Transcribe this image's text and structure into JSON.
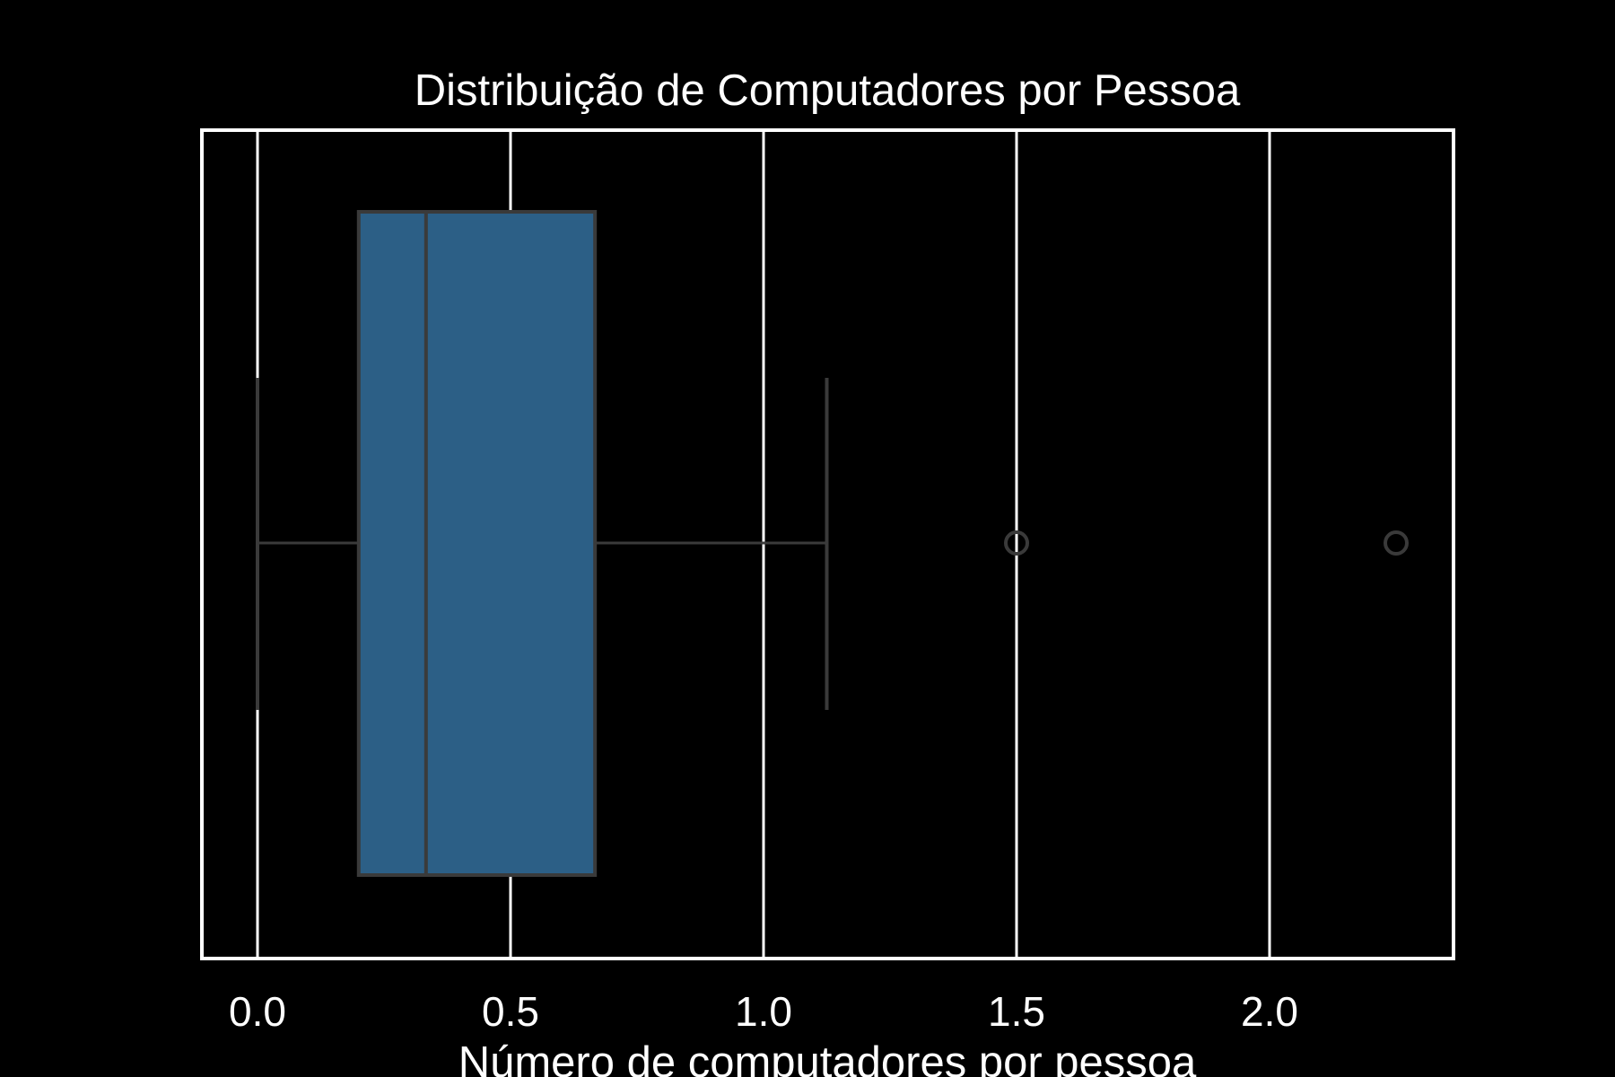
{
  "chart_data": {
    "type": "box",
    "orientation": "horizontal",
    "title": "Distribuição de Computadores por Pessoa",
    "xlabel": "Número de computadores por pessoa",
    "ylabel": "",
    "xlim": [
      -0.11,
      2.36
    ],
    "x_ticks": [
      0.0,
      0.5,
      1.0,
      1.5,
      2.0
    ],
    "x_tick_labels": [
      "0.0",
      "0.5",
      "1.0",
      "1.5",
      "2.0"
    ],
    "grid": "vertical",
    "box": {
      "whisker_low": 0.0,
      "q1": 0.2,
      "median": 0.333,
      "q3": 0.667,
      "whisker_high": 1.125,
      "outliers": [
        1.5,
        2.25
      ]
    },
    "colors": {
      "background": "#000000",
      "box_fill": "#2c5f86",
      "box_edge": "#3a3a3a",
      "grid": "#ffffff",
      "frame": "#ffffff",
      "text": "#ffffff"
    }
  }
}
